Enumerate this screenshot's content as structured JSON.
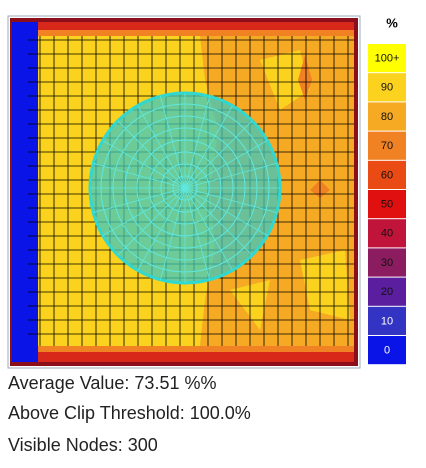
{
  "legend": {
    "title": "%",
    "items": [
      {
        "label": "100+",
        "color": "#ffff00"
      },
      {
        "label": "90",
        "color": "#fbd21e"
      },
      {
        "label": "80",
        "color": "#f6a923"
      },
      {
        "label": "70",
        "color": "#f08224"
      },
      {
        "label": "60",
        "color": "#ea4a14"
      },
      {
        "label": "50",
        "color": "#e01010"
      },
      {
        "label": "40",
        "color": "#c0143a"
      },
      {
        "label": "30",
        "color": "#8c1c60"
      },
      {
        "label": "20",
        "color": "#5a1e9e"
      },
      {
        "label": "10",
        "color": "#3434c4"
      },
      {
        "label": "0",
        "color": "#0a14e6"
      }
    ]
  },
  "stats": [
    "Average Value: 73.51 %%",
    "Above Clip Threshold: 100.0%",
    "Visible Nodes: 300"
  ]
}
